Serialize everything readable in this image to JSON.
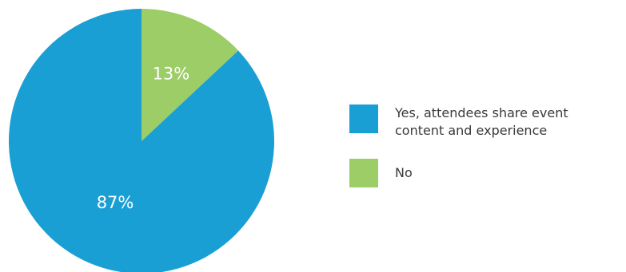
{
  "chart_data": {
    "type": "pie",
    "categories": [
      "Yes, attendees share event\ncontent and experience",
      "No"
    ],
    "values": [
      87,
      13
    ],
    "value_labels": [
      "87%",
      "13%"
    ],
    "colors": [
      "#1a9fd4",
      "#9ccd66"
    ],
    "start_angle_deg": 0,
    "direction": "clockwise-from-top, smallest slice first",
    "legend_position": "right"
  }
}
